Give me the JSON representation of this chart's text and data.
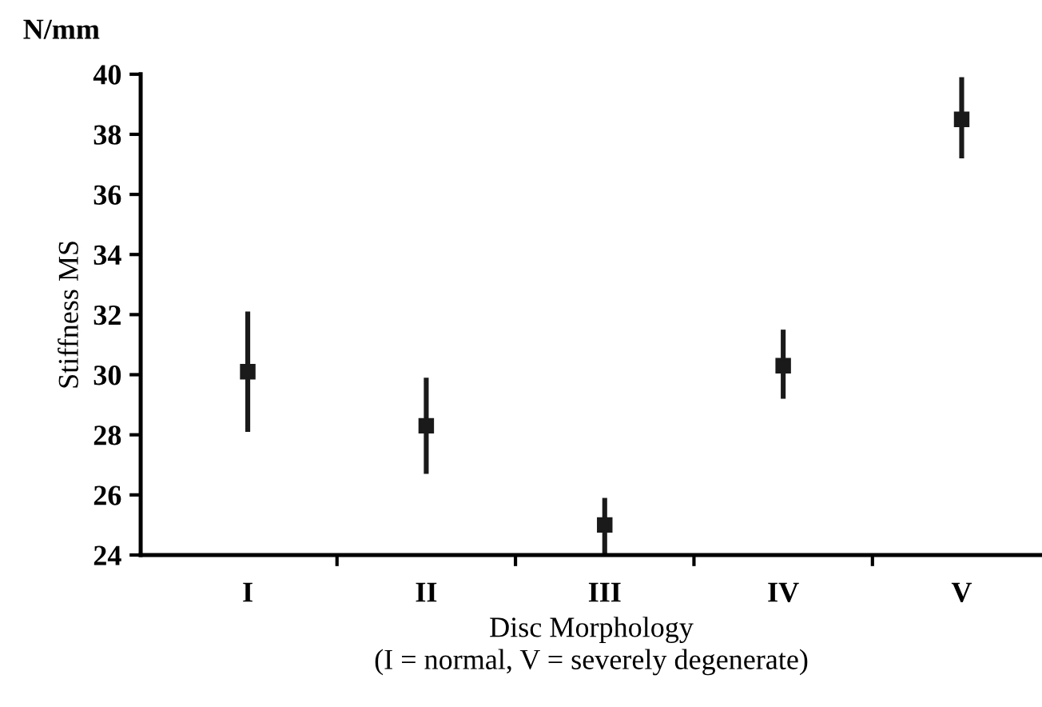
{
  "chart_data": {
    "type": "scatter",
    "xlabel": "Disc Morphology\n(I = normal, V = severely degenerate)",
    "ylabel": "Stiffness MS",
    "annotations": [
      "N/mm"
    ],
    "categories": [
      "I",
      "II",
      "III",
      "IV",
      "V"
    ],
    "values": [
      30.1,
      28.3,
      25.0,
      30.3,
      38.5
    ],
    "errors": [
      [
        28.1,
        32.1
      ],
      [
        26.7,
        29.9
      ],
      [
        24.0,
        25.9
      ],
      [
        29.2,
        31.5
      ],
      [
        37.2,
        39.9
      ]
    ],
    "color": "#1a1a1a",
    "marker": "square",
    "ylim": [
      24,
      40
    ],
    "yticks": [
      24,
      26,
      28,
      30,
      32,
      34,
      36,
      38,
      40
    ],
    "grid": false,
    "legend": false
  }
}
